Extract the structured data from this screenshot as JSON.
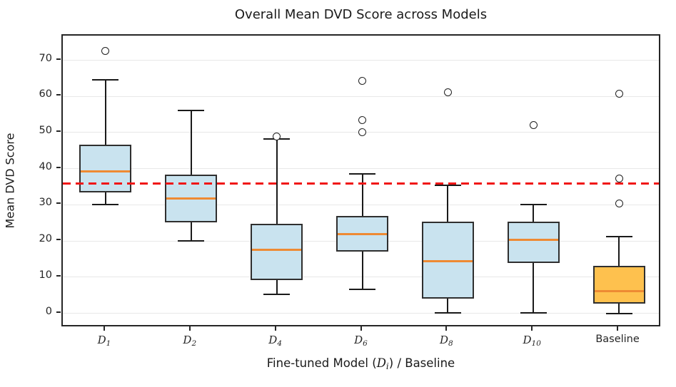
{
  "chart_data": {
    "type": "box",
    "title": "Overall Mean DVD Score across Models",
    "ylabel": "Mean DVD Score",
    "xlabel": {
      "pre": "Fine-tuned Model (",
      "d": "D",
      "sub": "i",
      "post": ") / Baseline"
    },
    "ylim": [
      -4.0,
      76.8
    ],
    "yticks": [
      0,
      10,
      20,
      30,
      40,
      50,
      60,
      70
    ],
    "grid": "horizontal",
    "legend": "none",
    "reference_line": {
      "value": 35.9,
      "color": "#f01515",
      "style": "dashed"
    },
    "categories": [
      {
        "base": "D",
        "sub": "1"
      },
      {
        "base": "D",
        "sub": "2"
      },
      {
        "base": "D",
        "sub": "4"
      },
      {
        "base": "D",
        "sub": "6"
      },
      {
        "base": "D",
        "sub": "8"
      },
      {
        "base": "D",
        "sub": "10"
      },
      {
        "base": "Baseline",
        "sub": ""
      }
    ],
    "boxes": [
      {
        "whislo": 30.0,
        "q1": 33.5,
        "med": 39.3,
        "q3": 46.6,
        "whishi": 64.5,
        "fliers": [
          72.5
        ],
        "fill": "#c9e3ef"
      },
      {
        "whislo": 20.0,
        "q1": 25.2,
        "med": 31.7,
        "q3": 38.3,
        "whishi": 56.2,
        "fliers": [],
        "fill": "#c9e3ef"
      },
      {
        "whislo": 5.3,
        "q1": 9.2,
        "med": 17.5,
        "q3": 24.7,
        "whishi": 48.2,
        "fliers": [
          49.0
        ],
        "fill": "#c9e3ef"
      },
      {
        "whislo": 6.6,
        "q1": 17.0,
        "med": 21.9,
        "q3": 26.9,
        "whishi": 38.5,
        "fliers": [
          50.0,
          53.5,
          64.2
        ],
        "fill": "#c9e3ef"
      },
      {
        "whislo": 0.2,
        "q1": 4.0,
        "med": 14.5,
        "q3": 25.4,
        "whishi": 35.5,
        "fliers": [
          61.2
        ],
        "fill": "#c9e3ef"
      },
      {
        "whislo": 0.2,
        "q1": 14.0,
        "med": 20.3,
        "q3": 25.4,
        "whishi": 30.0,
        "fliers": [
          52.0
        ],
        "fill": "#c9e3ef"
      },
      {
        "whislo": 0.0,
        "q1": 2.7,
        "med": 6.2,
        "q3": 13.2,
        "whishi": 21.3,
        "fliers": [
          30.4,
          37.3,
          60.8
        ],
        "fill": "#fec14e"
      }
    ],
    "colors": {
      "box_edge": "#2f2f2f",
      "median": "#ee8a33",
      "whisker": "#1a1a1a",
      "grid": "#e8e8e8",
      "reference": "#f01515",
      "box_fill_model": "#c9e3ef",
      "box_fill_baseline": "#fec14e"
    }
  }
}
